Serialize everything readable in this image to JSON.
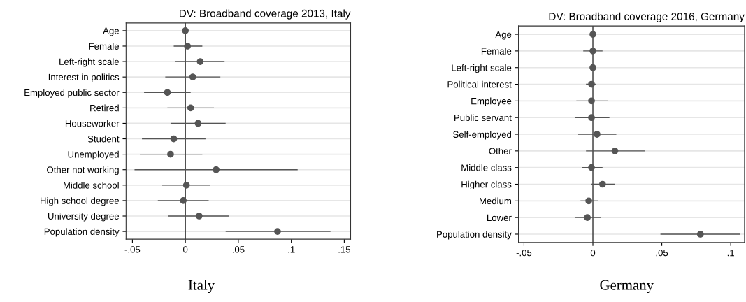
{
  "chart_data": [
    {
      "type": "scatter",
      "orientation": "horizontal",
      "title": "DV: Broadband coverage 2013, Italy",
      "categories": [
        "Age",
        "Female",
        "Left-right scale",
        "Interest in politics",
        "Employed public sector",
        "Retired",
        "Houseworker",
        "Student",
        "Unemployed",
        "Other not working",
        "Middle school",
        "High school degree",
        "University degree",
        "Population density"
      ],
      "values": [
        0,
        0.002,
        0.014,
        0.007,
        -0.017,
        0.005,
        0.012,
        -0.011,
        -0.014,
        0.029,
        0.001,
        -0.002,
        0.013,
        0.087
      ],
      "errors": [
        null,
        [
          -0.011,
          0.016
        ],
        [
          -0.01,
          0.037
        ],
        [
          -0.019,
          0.033
        ],
        [
          -0.039,
          0.005
        ],
        [
          -0.017,
          0.027
        ],
        [
          -0.014,
          0.038
        ],
        [
          -0.041,
          0.019
        ],
        [
          -0.043,
          0.016
        ],
        [
          -0.048,
          0.106
        ],
        [
          -0.022,
          0.023
        ],
        [
          -0.026,
          0.022
        ],
        [
          -0.016,
          0.041
        ],
        [
          0.038,
          0.137
        ]
      ],
      "color": "#555555",
      "marker": "circle",
      "grid": "y",
      "xlim": [
        -0.056,
        0.156
      ],
      "xticks": [
        {
          "value": -0.05,
          "label": "-.05"
        },
        0,
        {
          "value": 0.05,
          "label": ".05"
        },
        {
          "value": 0.1,
          "label": ".1"
        },
        {
          "value": 0.15,
          "label": ".15"
        }
      ],
      "ref_lines": [
        {
          "axis": "x",
          "value": 0,
          "color": "#333333"
        }
      ],
      "annotations": [
        "Italy"
      ]
    },
    {
      "type": "scatter",
      "orientation": "horizontal",
      "title": "DV: Broadband coverage 2016, Germany",
      "categories": [
        "Age",
        "Female",
        "Left-right scale",
        "Political interest",
        "Employee",
        "Public servant",
        "Self-employed",
        "Other",
        "Middle class",
        "Higher class",
        "Medium",
        "Lower",
        "Population density"
      ],
      "values": [
        0,
        0,
        0,
        -0.001,
        -0.001,
        -0.001,
        0.003,
        0.016,
        -0.001,
        0.007,
        -0.003,
        -0.004,
        0.078
      ],
      "errors": [
        null,
        [
          -0.007,
          0.007
        ],
        null,
        [
          -0.005,
          0.002
        ],
        [
          -0.012,
          0.011
        ],
        [
          -0.013,
          0.012
        ],
        [
          -0.011,
          0.017
        ],
        [
          -0.005,
          0.038
        ],
        [
          -0.008,
          0.007
        ],
        [
          -0.001,
          0.016
        ],
        [
          -0.009,
          0.004
        ],
        [
          -0.013,
          0.006
        ],
        [
          0.049,
          0.107
        ]
      ],
      "color": "#555555",
      "marker": "circle",
      "grid": "y",
      "xlim": [
        -0.054,
        0.11
      ],
      "xticks": [
        {
          "value": -0.05,
          "label": "-.05"
        },
        0,
        {
          "value": 0.05,
          "label": ".05"
        },
        {
          "value": 0.1,
          "label": ".1"
        }
      ],
      "ref_lines": [
        {
          "axis": "x",
          "value": 0,
          "color": "#333333"
        }
      ],
      "annotations": [
        "Germany"
      ]
    }
  ]
}
